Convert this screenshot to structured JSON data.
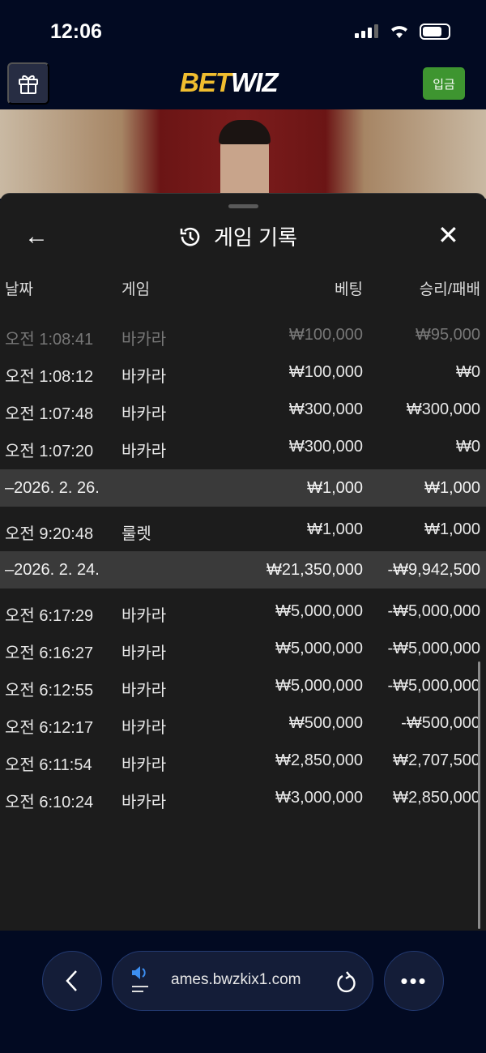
{
  "status": {
    "time": "12:06"
  },
  "topbar": {
    "logo_part1": "BET",
    "logo_part2": "WIZ",
    "deposit_label": "입금",
    "logo_color": "#f0bd2f",
    "deposit_color": "#3e9530"
  },
  "panel": {
    "title": "게임 기록",
    "columns": [
      "날짜",
      "게임",
      "베팅",
      "승리/패배"
    ],
    "rows": [
      {
        "type": "item",
        "date": "오전 1:08:41",
        "game": "바카라",
        "bet": "₩100,000",
        "result": "₩95,000",
        "faded": true
      },
      {
        "type": "item",
        "date": "오전 1:08:12",
        "game": "바카라",
        "bet": "₩100,000",
        "result": "₩0"
      },
      {
        "type": "item",
        "date": "오전 1:07:48",
        "game": "바카라",
        "bet": "₩300,000",
        "result": "₩300,000"
      },
      {
        "type": "item",
        "date": "오전 1:07:20",
        "game": "바카라",
        "bet": "₩300,000",
        "result": "₩0"
      },
      {
        "type": "group",
        "date": "–2026. 2. 26.",
        "game": "",
        "bet": "₩1,000",
        "result": "₩1,000"
      },
      {
        "type": "item",
        "date": "오전 9:20:48",
        "game": "룰렛",
        "bet": "₩1,000",
        "result": "₩1,000"
      },
      {
        "type": "group",
        "date": "–2026. 2. 24.",
        "game": "",
        "bet": "₩21,350,000",
        "result": "-₩9,942,500"
      },
      {
        "type": "item",
        "date": "오전 6:17:29",
        "game": "바카라",
        "bet": "₩5,000,000",
        "result": "-₩5,000,000"
      },
      {
        "type": "item",
        "date": "오전 6:16:27",
        "game": "바카라",
        "bet": "₩5,000,000",
        "result": "-₩5,000,000"
      },
      {
        "type": "item",
        "date": "오전 6:12:55",
        "game": "바카라",
        "bet": "₩5,000,000",
        "result": "-₩5,000,000"
      },
      {
        "type": "item",
        "date": "오전 6:12:17",
        "game": "바카라",
        "bet": "₩500,000",
        "result": "-₩500,000"
      },
      {
        "type": "item",
        "date": "오전 6:11:54",
        "game": "바카라",
        "bet": "₩2,850,000",
        "result": "₩2,707,500"
      },
      {
        "type": "item",
        "date": "오전 6:10:24",
        "game": "바카라",
        "bet": "₩3,000,000",
        "result": "₩2,850,000"
      }
    ]
  },
  "browser": {
    "url": "ames.bwzkix1.com"
  }
}
